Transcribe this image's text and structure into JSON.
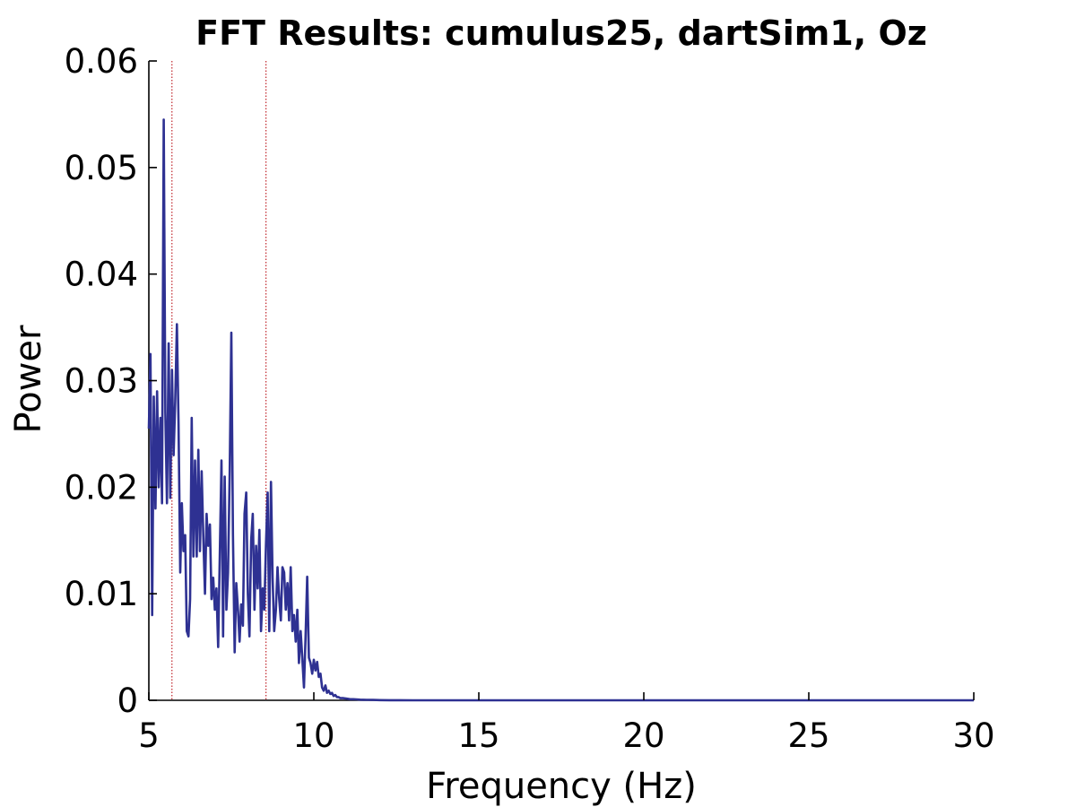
{
  "chart_data": {
    "type": "line",
    "title": "FFT Results: cumulus25, dartSim1, Oz",
    "xlabel": "Frequency (Hz)",
    "ylabel": "Power",
    "xlim": [
      5,
      30
    ],
    "ylim": [
      0,
      0.06
    ],
    "x_ticks": [
      "5",
      "10",
      "15",
      "20",
      "25",
      "30"
    ],
    "y_ticks": [
      "0",
      "0.01",
      "0.02",
      "0.03",
      "0.04",
      "0.05",
      "0.06"
    ],
    "grid": false,
    "legend": "none",
    "series": [
      {
        "color": "#2e3192",
        "x": [
          5.0,
          5.05,
          5.1,
          5.15,
          5.2,
          5.25,
          5.3,
          5.35,
          5.4,
          5.45,
          5.5,
          5.55,
          5.6,
          5.65,
          5.7,
          5.75,
          5.8,
          5.85,
          5.9,
          5.95,
          6.0,
          6.05,
          6.1,
          6.15,
          6.2,
          6.25,
          6.3,
          6.35,
          6.4,
          6.45,
          6.5,
          6.55,
          6.6,
          6.65,
          6.7,
          6.75,
          6.8,
          6.85,
          6.9,
          6.95,
          7.0,
          7.05,
          7.1,
          7.15,
          7.2,
          7.25,
          7.3,
          7.35,
          7.4,
          7.45,
          7.5,
          7.55,
          7.6,
          7.65,
          7.7,
          7.75,
          7.8,
          7.85,
          7.9,
          7.95,
          8.0,
          8.05,
          8.1,
          8.15,
          8.2,
          8.25,
          8.3,
          8.35,
          8.4,
          8.45,
          8.5,
          8.55,
          8.6,
          8.65,
          8.7,
          8.75,
          8.8,
          8.85,
          8.9,
          8.95,
          9.0,
          9.05,
          9.1,
          9.15,
          9.2,
          9.25,
          9.3,
          9.35,
          9.4,
          9.45,
          9.5,
          9.55,
          9.6,
          9.65,
          9.7,
          9.75,
          9.8,
          9.85,
          9.9,
          9.95,
          10.0,
          10.05,
          10.1,
          10.15,
          10.2,
          10.25,
          10.3,
          10.35,
          10.4,
          10.45,
          10.5,
          10.55,
          10.6,
          10.65,
          10.7,
          10.75,
          10.8,
          10.9,
          11.0,
          11.1,
          11.2,
          11.3,
          11.4,
          11.5,
          11.6,
          11.8,
          12.0,
          12.3,
          12.6,
          13.0,
          14.0,
          15.0,
          20.0,
          25.0,
          30.0
        ],
        "values": [
          0.0255,
          0.0325,
          0.008,
          0.0285,
          0.018,
          0.029,
          0.02,
          0.0265,
          0.0185,
          0.0545,
          0.027,
          0.0185,
          0.0335,
          0.019,
          0.031,
          0.023,
          0.028,
          0.0353,
          0.026,
          0.012,
          0.0185,
          0.014,
          0.0155,
          0.0065,
          0.006,
          0.0095,
          0.0265,
          0.0135,
          0.0225,
          0.0135,
          0.0235,
          0.014,
          0.0215,
          0.0155,
          0.01,
          0.0175,
          0.0145,
          0.0165,
          0.0095,
          0.0115,
          0.0085,
          0.0105,
          0.005,
          0.0135,
          0.0225,
          0.006,
          0.021,
          0.0085,
          0.012,
          0.0215,
          0.0345,
          0.0155,
          0.0045,
          0.011,
          0.0085,
          0.0055,
          0.009,
          0.007,
          0.0175,
          0.0195,
          0.01,
          0.006,
          0.015,
          0.0175,
          0.0085,
          0.0145,
          0.0105,
          0.016,
          0.0065,
          0.0105,
          0.0085,
          0.0145,
          0.0195,
          0.0065,
          0.0205,
          0.0115,
          0.0065,
          0.0085,
          0.0125,
          0.0095,
          0.0075,
          0.0125,
          0.012,
          0.0085,
          0.011,
          0.0075,
          0.0125,
          0.0065,
          0.008,
          0.0055,
          0.0085,
          0.0035,
          0.0065,
          0.004,
          0.0012,
          0.006,
          0.0116,
          0.004,
          0.0035,
          0.0025,
          0.0038,
          0.0028,
          0.0036,
          0.0022,
          0.0025,
          0.0012,
          0.0009,
          0.0014,
          0.0007,
          0.0009,
          0.0006,
          0.0007,
          0.0004,
          0.0005,
          0.0003,
          0.0003,
          0.0002,
          0.0002,
          0.00015,
          0.0001,
          0.0001,
          8e-05,
          6e-05,
          5e-05,
          4e-05,
          3e-05,
          2e-05,
          1e-05,
          5e-06,
          2e-06,
          0.0,
          0.0,
          0.0,
          0.0,
          0.0
        ]
      }
    ],
    "vertical_markers": [
      {
        "x": 5.7,
        "color": "#c1272d",
        "style": "dotted"
      },
      {
        "x": 8.55,
        "color": "#c1272d",
        "style": "dotted"
      }
    ]
  }
}
